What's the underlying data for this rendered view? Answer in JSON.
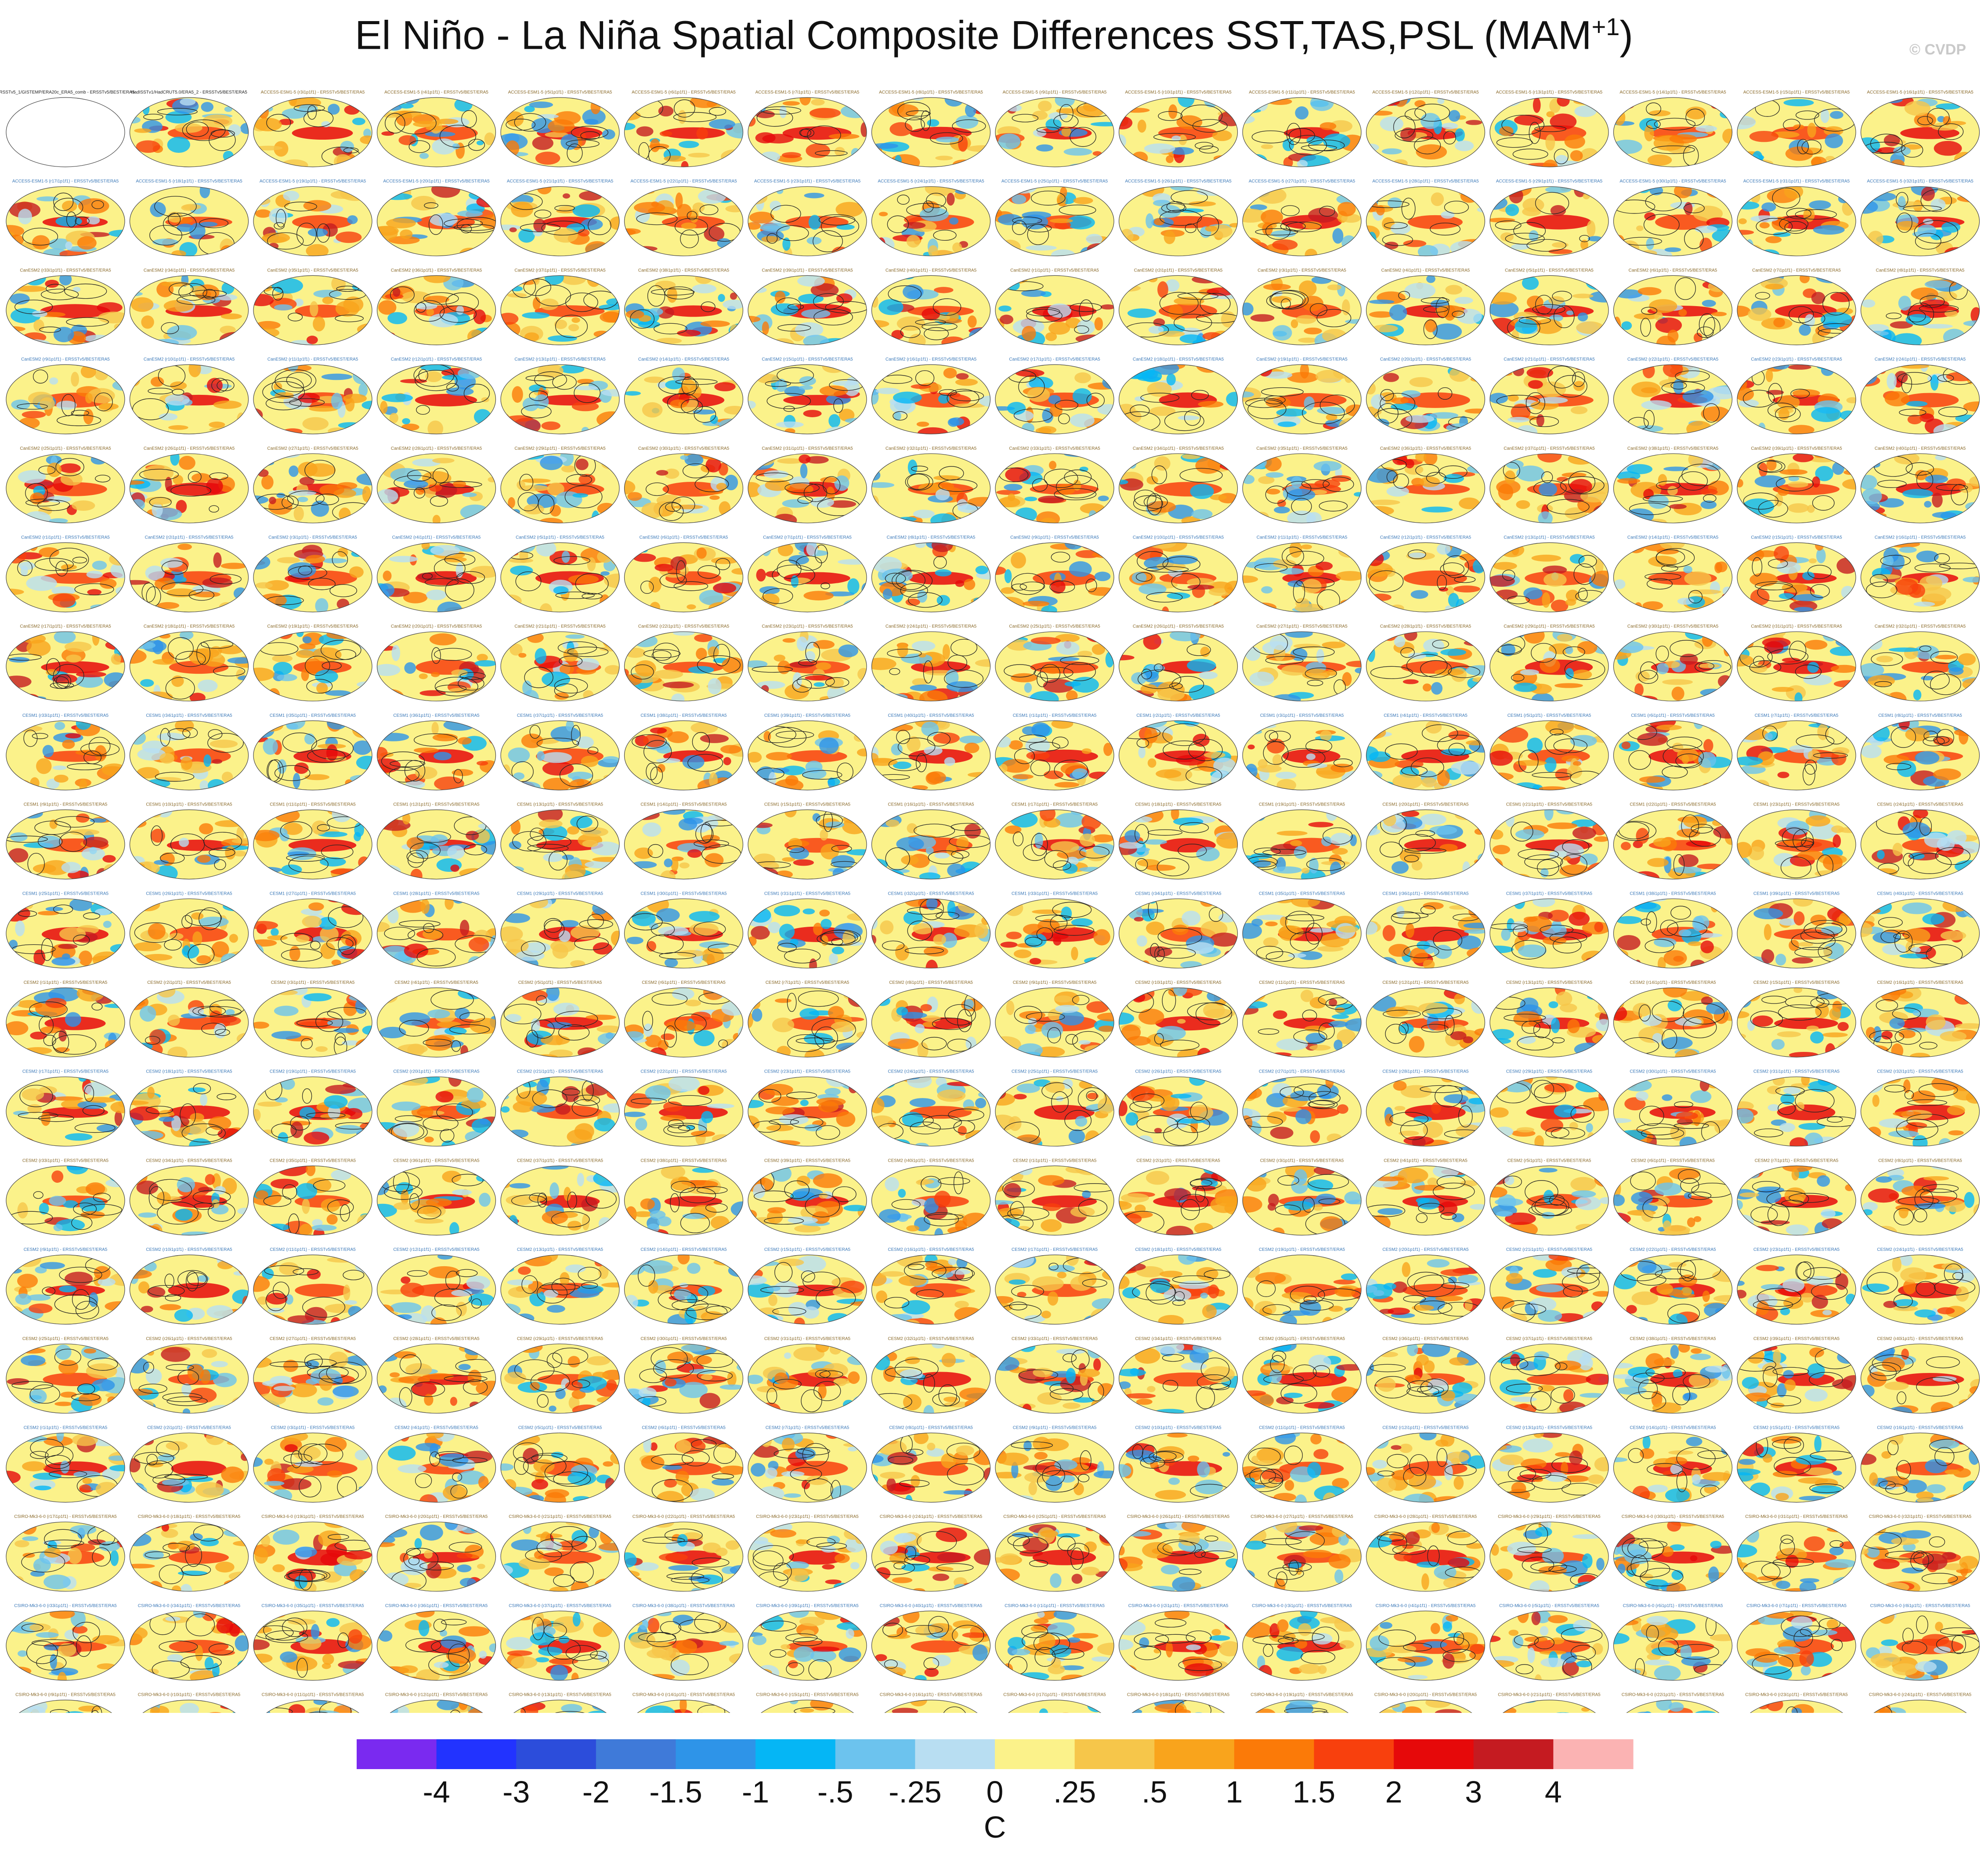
{
  "figure": {
    "title_main": "El Niño - La Niña Spatial Composite Differences SST,TAS,PSL (MAM",
    "title_sup": "+1",
    "title_close": ")",
    "credit": "© CVDP"
  },
  "colors": {
    "palette": [
      "#7a2af0",
      "#2233ff",
      "#2c4ddb",
      "#3f7ad9",
      "#2e94e8",
      "#05b6f5",
      "#6cc3ee",
      "#b8def2",
      "#fbf28a",
      "#f6c64a",
      "#f9a41c",
      "#fb7a08",
      "#f8400d",
      "#e6090a",
      "#c51b21",
      "#fbb3b3"
    ],
    "contour": "#222222",
    "land_shade": "#8a8a8a"
  },
  "panels": {
    "rows": 19,
    "cols": 16,
    "obs_labels": [
      "ERSSTv5_1/GISTEMP/ERA20c_ERA5_comb - ERSSTv5/BEST/ERA5",
      "HadISSTv1/HadCRUT5.0/ERA5_2 - ERSSTv5/BEST/ERA5"
    ],
    "ensemble_groups": [
      {
        "name": "ACCESS-ESM1-5",
        "rows": [
          0,
          2
        ]
      },
      {
        "name": "CanESM2",
        "rows": [
          2,
          7
        ]
      },
      {
        "name": "CESM1",
        "rows": [
          7,
          10
        ]
      },
      {
        "name": "CESM2",
        "rows": [
          10,
          16
        ]
      },
      {
        "name": "CSIRO-Mk3-6-0",
        "rows": [
          16,
          19
        ]
      }
    ],
    "label_suffix": " - ERSSTv5/BEST/ERA5"
  },
  "chart_data": {
    "type": "heatmap",
    "title": "El Niño - La Niña Spatial Composite Differences SST,TAS,PSL (MAM+1)",
    "layout": "19 x 16 grid of global maps (Hammer projection): observations followed by model ensemble members",
    "colorbar": {
      "units": "C",
      "levels": [
        "-4",
        "-3",
        "-2",
        "-1.5",
        "-1",
        "-.5",
        "-.25",
        "0",
        ".25",
        ".5",
        "1",
        "1.5",
        "2",
        "3",
        "4"
      ]
    },
    "contour_variable": "PSL"
  }
}
